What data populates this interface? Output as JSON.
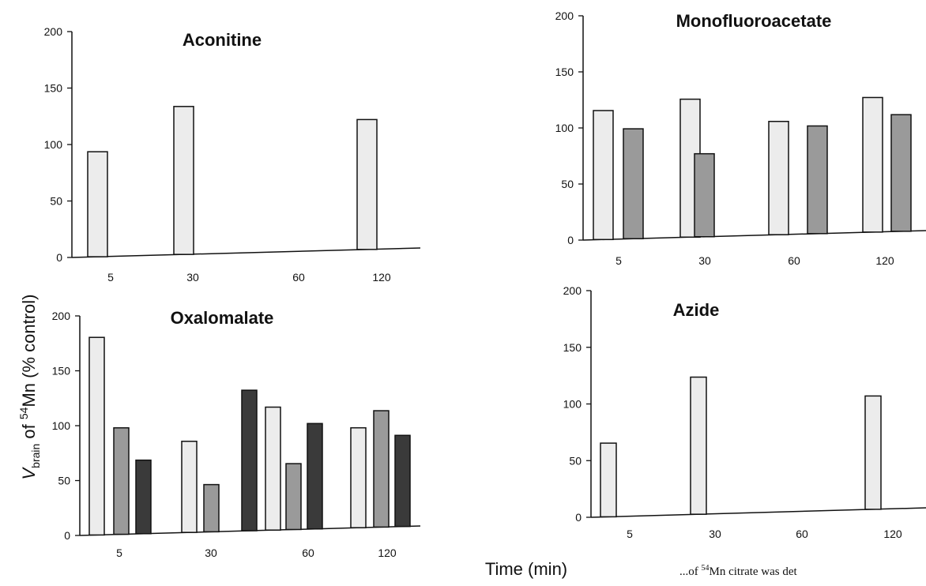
{
  "figure": {
    "ylabel_symbol": "V",
    "ylabel_subscript": "brain",
    "ylabel_text": " of ",
    "ylabel_superscript": "54",
    "ylabel_tail": "Mn (% control)",
    "xlabel": "Time (min)",
    "caption_fragment_prefix": "...of ",
    "caption_fragment_superscript": "54",
    "caption_fragment_tail": "Mn citrate was det"
  },
  "colors": {
    "background": "#ffffff",
    "axis": "#111111",
    "bar_light": "#ececec",
    "bar_medium": "#9a9a9a",
    "bar_dark": "#3a3a3a",
    "bar_outline": "#111111"
  },
  "chart_data": [
    {
      "type": "bar",
      "title": "Aconitine",
      "categories": [
        "5",
        "30",
        "60",
        "120"
      ],
      "ylim": [
        0,
        200
      ],
      "yticks": [
        0,
        50,
        100,
        150,
        200
      ],
      "series": [
        {
          "color": "light",
          "values": [
            93,
            131,
            null,
            115
          ]
        }
      ]
    },
    {
      "type": "bar",
      "title": "Monofluoroacetate",
      "categories": [
        "5",
        "30",
        "60",
        "120"
      ],
      "ylim": [
        0,
        200
      ],
      "yticks": [
        0,
        50,
        100,
        150,
        200
      ],
      "series": [
        {
          "color": "light",
          "values": [
            115,
            123,
            101,
            120
          ]
        },
        {
          "color": "medium",
          "values": [
            98,
            74,
            96,
            104
          ]
        }
      ]
    },
    {
      "type": "bar",
      "title": "Oxalomalate",
      "categories": [
        "5",
        "30",
        "60",
        "120"
      ],
      "ylim": [
        0,
        200
      ],
      "yticks": [
        0,
        50,
        100,
        150,
        200
      ],
      "series": [
        {
          "color": "light",
          "values": [
            180,
            83,
            112,
            91
          ]
        },
        {
          "color": "medium",
          "values": [
            97,
            43,
            60,
            106
          ]
        },
        {
          "color": "dark",
          "values": [
            67,
            128,
            96,
            83
          ]
        }
      ]
    },
    {
      "type": "bar",
      "title": "Azide",
      "categories": [
        "5",
        "30",
        "60",
        "120"
      ],
      "ylim": [
        0,
        200
      ],
      "yticks": [
        0,
        50,
        100,
        150,
        200
      ],
      "series": [
        {
          "color": "light",
          "values": [
            65,
            121,
            null,
            100
          ]
        }
      ]
    }
  ]
}
